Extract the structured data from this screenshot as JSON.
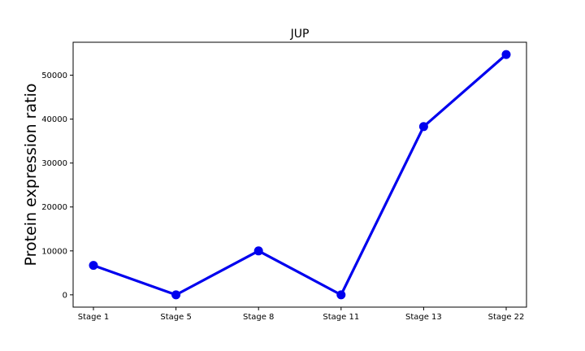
{
  "chart_data": {
    "type": "line",
    "title": "JUP",
    "xlabel": "",
    "ylabel": "Protein expression ratio",
    "categories": [
      "Stage 1",
      "Stage 5",
      "Stage 8",
      "Stage 11",
      "Stage 13",
      "Stage 22"
    ],
    "series": [
      {
        "values": [
          6700,
          0,
          10000,
          0,
          38300,
          54700
        ],
        "color": "#0000ee"
      }
    ],
    "yticks": [
      0,
      10000,
      20000,
      30000,
      40000,
      50000
    ],
    "ylim": [
      -2800,
      57500
    ],
    "grid": false,
    "legend": "none"
  }
}
